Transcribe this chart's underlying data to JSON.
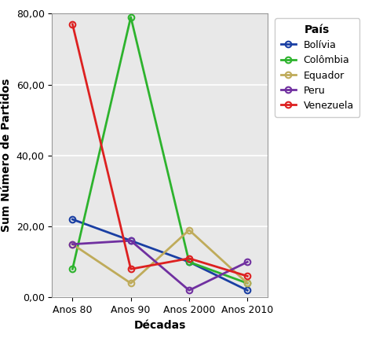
{
  "x_labels": [
    "Anos 80",
    "Anos 90",
    "Anos 2000",
    "Anos 2010"
  ],
  "series": {
    "Bolívia": {
      "values": [
        22,
        16,
        10,
        2
      ],
      "color": "#1a3fa3"
    },
    "Colômbia": {
      "values": [
        8,
        79,
        10,
        4
      ],
      "color": "#2db32d"
    },
    "Equador": {
      "values": [
        15,
        4,
        19,
        4
      ],
      "color": "#bfab5a"
    },
    "Peru": {
      "values": [
        15,
        16,
        2,
        10
      ],
      "color": "#7030a0"
    },
    "Venezuela": {
      "values": [
        77,
        8,
        11,
        6
      ],
      "color": "#dd2020"
    }
  },
  "xlabel": "Décadas",
  "ylabel": "Sum Número de Partidos",
  "legend_title": "País",
  "ylim": [
    0,
    80
  ],
  "yticks": [
    0,
    20,
    40,
    60,
    80
  ],
  "ytick_labels": [
    "0,00",
    "20,00",
    "40,00",
    "60,00",
    "80,00"
  ],
  "plot_bg_color": "#e8e8e8",
  "outer_bg_color": "#ffffff",
  "grid_color": "#ffffff",
  "axis_fontsize": 10,
  "legend_fontsize": 9,
  "tick_fontsize": 9,
  "line_width": 2.0,
  "marker_size": 5.5,
  "marker_linewidth": 1.5
}
